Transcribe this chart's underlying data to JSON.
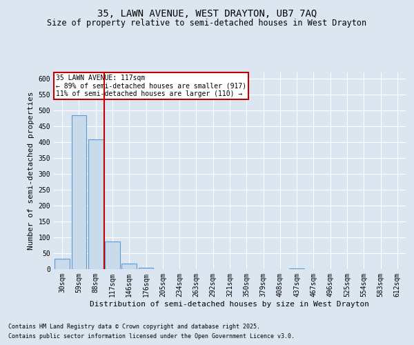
{
  "title": "35, LAWN AVENUE, WEST DRAYTON, UB7 7AQ",
  "subtitle": "Size of property relative to semi-detached houses in West Drayton",
  "xlabel": "Distribution of semi-detached houses by size in West Drayton",
  "ylabel": "Number of semi-detached properties",
  "categories": [
    "30sqm",
    "59sqm",
    "88sqm",
    "117sqm",
    "146sqm",
    "176sqm",
    "205sqm",
    "234sqm",
    "263sqm",
    "292sqm",
    "321sqm",
    "350sqm",
    "379sqm",
    "408sqm",
    "437sqm",
    "467sqm",
    "496sqm",
    "525sqm",
    "554sqm",
    "583sqm",
    "612sqm"
  ],
  "values": [
    33,
    485,
    408,
    88,
    18,
    5,
    0,
    0,
    0,
    0,
    0,
    0,
    0,
    0,
    2,
    0,
    0,
    0,
    0,
    0,
    0
  ],
  "bar_color": "#c9daea",
  "bar_edge_color": "#5b9bd5",
  "vline_x_index": 3,
  "vline_color": "#c00000",
  "annotation_title": "35 LAWN AVENUE: 117sqm",
  "annotation_line1": "← 89% of semi-detached houses are smaller (917)",
  "annotation_line2": "11% of semi-detached houses are larger (110) →",
  "annotation_box_color": "#c00000",
  "ylim": [
    0,
    620
  ],
  "yticks": [
    0,
    50,
    100,
    150,
    200,
    250,
    300,
    350,
    400,
    450,
    500,
    550,
    600
  ],
  "footnote1": "Contains HM Land Registry data © Crown copyright and database right 2025.",
  "footnote2": "Contains public sector information licensed under the Open Government Licence v3.0.",
  "bg_color": "#dce6f1",
  "plot_bg_color": "#dce6f1",
  "title_fontsize": 10,
  "subtitle_fontsize": 8.5,
  "tick_fontsize": 7,
  "label_fontsize": 8,
  "footnote_fontsize": 6,
  "annotation_fontsize": 7
}
